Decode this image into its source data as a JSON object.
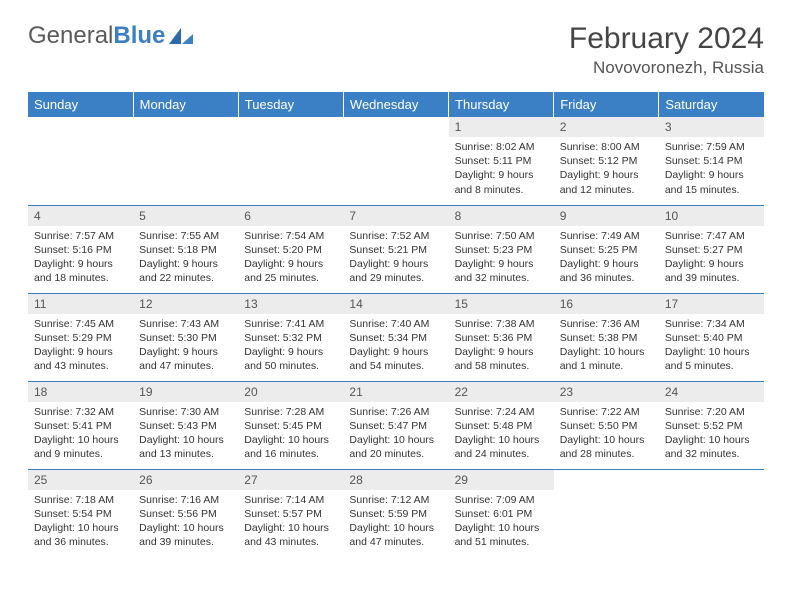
{
  "logo": {
    "text_gray": "General",
    "text_blue": "Blue"
  },
  "title": "February 2024",
  "location": "Novovoronezh, Russia",
  "colors": {
    "header_bg": "#3b7fc4",
    "header_fg": "#ffffff",
    "daynum_bg": "#ececec",
    "rule": "#3b7fc4",
    "logo_gray": "#5a5a5a",
    "logo_blue": "#3b7fc4"
  },
  "weekdays": [
    "Sunday",
    "Monday",
    "Tuesday",
    "Wednesday",
    "Thursday",
    "Friday",
    "Saturday"
  ],
  "weeks": [
    [
      null,
      null,
      null,
      null,
      {
        "n": "1",
        "sr": "8:02 AM",
        "ss": "5:11 PM",
        "dl": "9 hours and 8 minutes."
      },
      {
        "n": "2",
        "sr": "8:00 AM",
        "ss": "5:12 PM",
        "dl": "9 hours and 12 minutes."
      },
      {
        "n": "3",
        "sr": "7:59 AM",
        "ss": "5:14 PM",
        "dl": "9 hours and 15 minutes."
      }
    ],
    [
      {
        "n": "4",
        "sr": "7:57 AM",
        "ss": "5:16 PM",
        "dl": "9 hours and 18 minutes."
      },
      {
        "n": "5",
        "sr": "7:55 AM",
        "ss": "5:18 PM",
        "dl": "9 hours and 22 minutes."
      },
      {
        "n": "6",
        "sr": "7:54 AM",
        "ss": "5:20 PM",
        "dl": "9 hours and 25 minutes."
      },
      {
        "n": "7",
        "sr": "7:52 AM",
        "ss": "5:21 PM",
        "dl": "9 hours and 29 minutes."
      },
      {
        "n": "8",
        "sr": "7:50 AM",
        "ss": "5:23 PM",
        "dl": "9 hours and 32 minutes."
      },
      {
        "n": "9",
        "sr": "7:49 AM",
        "ss": "5:25 PM",
        "dl": "9 hours and 36 minutes."
      },
      {
        "n": "10",
        "sr": "7:47 AM",
        "ss": "5:27 PM",
        "dl": "9 hours and 39 minutes."
      }
    ],
    [
      {
        "n": "11",
        "sr": "7:45 AM",
        "ss": "5:29 PM",
        "dl": "9 hours and 43 minutes."
      },
      {
        "n": "12",
        "sr": "7:43 AM",
        "ss": "5:30 PM",
        "dl": "9 hours and 47 minutes."
      },
      {
        "n": "13",
        "sr": "7:41 AM",
        "ss": "5:32 PM",
        "dl": "9 hours and 50 minutes."
      },
      {
        "n": "14",
        "sr": "7:40 AM",
        "ss": "5:34 PM",
        "dl": "9 hours and 54 minutes."
      },
      {
        "n": "15",
        "sr": "7:38 AM",
        "ss": "5:36 PM",
        "dl": "9 hours and 58 minutes."
      },
      {
        "n": "16",
        "sr": "7:36 AM",
        "ss": "5:38 PM",
        "dl": "10 hours and 1 minute."
      },
      {
        "n": "17",
        "sr": "7:34 AM",
        "ss": "5:40 PM",
        "dl": "10 hours and 5 minutes."
      }
    ],
    [
      {
        "n": "18",
        "sr": "7:32 AM",
        "ss": "5:41 PM",
        "dl": "10 hours and 9 minutes."
      },
      {
        "n": "19",
        "sr": "7:30 AM",
        "ss": "5:43 PM",
        "dl": "10 hours and 13 minutes."
      },
      {
        "n": "20",
        "sr": "7:28 AM",
        "ss": "5:45 PM",
        "dl": "10 hours and 16 minutes."
      },
      {
        "n": "21",
        "sr": "7:26 AM",
        "ss": "5:47 PM",
        "dl": "10 hours and 20 minutes."
      },
      {
        "n": "22",
        "sr": "7:24 AM",
        "ss": "5:48 PM",
        "dl": "10 hours and 24 minutes."
      },
      {
        "n": "23",
        "sr": "7:22 AM",
        "ss": "5:50 PM",
        "dl": "10 hours and 28 minutes."
      },
      {
        "n": "24",
        "sr": "7:20 AM",
        "ss": "5:52 PM",
        "dl": "10 hours and 32 minutes."
      }
    ],
    [
      {
        "n": "25",
        "sr": "7:18 AM",
        "ss": "5:54 PM",
        "dl": "10 hours and 36 minutes."
      },
      {
        "n": "26",
        "sr": "7:16 AM",
        "ss": "5:56 PM",
        "dl": "10 hours and 39 minutes."
      },
      {
        "n": "27",
        "sr": "7:14 AM",
        "ss": "5:57 PM",
        "dl": "10 hours and 43 minutes."
      },
      {
        "n": "28",
        "sr": "7:12 AM",
        "ss": "5:59 PM",
        "dl": "10 hours and 47 minutes."
      },
      {
        "n": "29",
        "sr": "7:09 AM",
        "ss": "6:01 PM",
        "dl": "10 hours and 51 minutes."
      },
      null,
      null
    ]
  ],
  "labels": {
    "sunrise": "Sunrise: ",
    "sunset": "Sunset: ",
    "daylight": "Daylight: "
  }
}
